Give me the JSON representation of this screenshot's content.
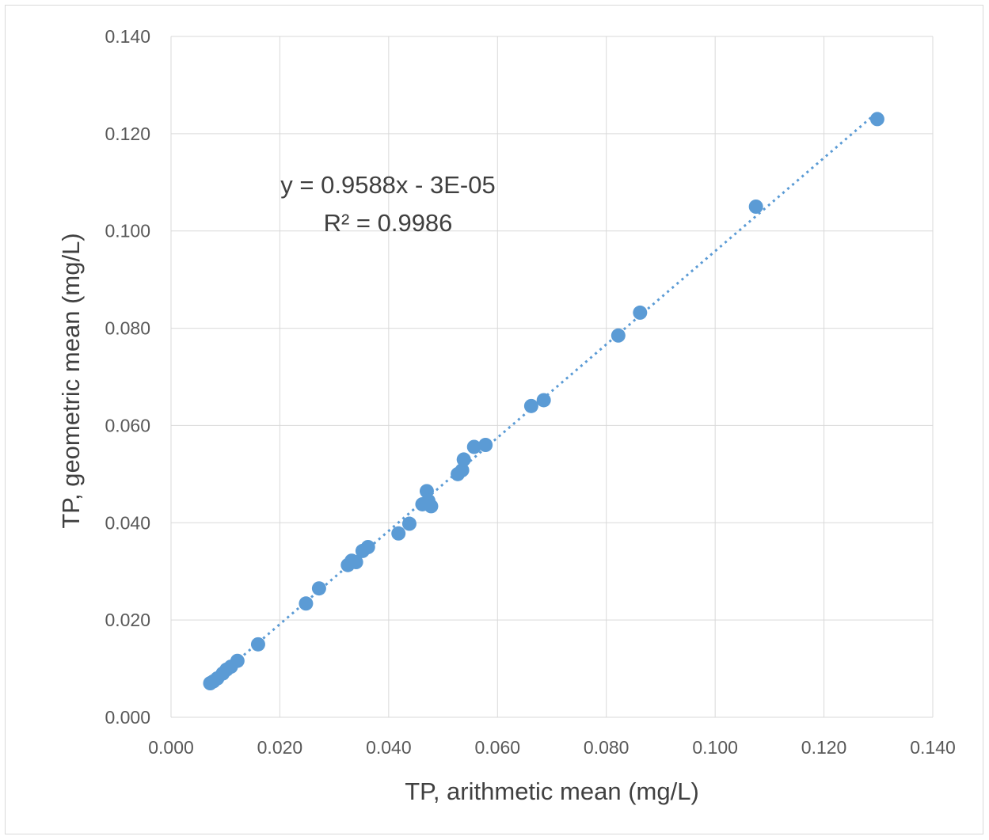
{
  "chart_data": {
    "type": "scatter",
    "title": "",
    "xlabel": "TP, arithmetic mean (mg/L)",
    "ylabel": "TP, geometric mean (mg/L)",
    "xlim": [
      0,
      0.14
    ],
    "ylim": [
      0,
      0.14
    ],
    "x_ticks": [
      "0.000",
      "0.020",
      "0.040",
      "0.060",
      "0.080",
      "0.100",
      "0.120",
      "0.140"
    ],
    "y_ticks": [
      "0.000",
      "0.020",
      "0.040",
      "0.060",
      "0.080",
      "0.100",
      "0.120",
      "0.140"
    ],
    "grid": true,
    "legend": "none",
    "series_color": "#5b9bd5",
    "points": [
      {
        "x": 0.0072,
        "y": 0.007
      },
      {
        "x": 0.0078,
        "y": 0.0074
      },
      {
        "x": 0.0085,
        "y": 0.008
      },
      {
        "x": 0.0095,
        "y": 0.009
      },
      {
        "x": 0.0102,
        "y": 0.0098
      },
      {
        "x": 0.011,
        "y": 0.0104
      },
      {
        "x": 0.0122,
        "y": 0.0116
      },
      {
        "x": 0.016,
        "y": 0.015
      },
      {
        "x": 0.0248,
        "y": 0.0234
      },
      {
        "x": 0.0272,
        "y": 0.0265
      },
      {
        "x": 0.0325,
        "y": 0.0313
      },
      {
        "x": 0.0332,
        "y": 0.0322
      },
      {
        "x": 0.034,
        "y": 0.0319
      },
      {
        "x": 0.0352,
        "y": 0.0342
      },
      {
        "x": 0.0362,
        "y": 0.035
      },
      {
        "x": 0.0418,
        "y": 0.0378
      },
      {
        "x": 0.0438,
        "y": 0.0398
      },
      {
        "x": 0.0462,
        "y": 0.0438
      },
      {
        "x": 0.047,
        "y": 0.0465
      },
      {
        "x": 0.0473,
        "y": 0.0445
      },
      {
        "x": 0.0478,
        "y": 0.0434
      },
      {
        "x": 0.0527,
        "y": 0.05
      },
      {
        "x": 0.0535,
        "y": 0.0508
      },
      {
        "x": 0.0538,
        "y": 0.053
      },
      {
        "x": 0.0557,
        "y": 0.0556
      },
      {
        "x": 0.0578,
        "y": 0.056
      },
      {
        "x": 0.0662,
        "y": 0.064
      },
      {
        "x": 0.0685,
        "y": 0.0652
      },
      {
        "x": 0.0822,
        "y": 0.0785
      },
      {
        "x": 0.0862,
        "y": 0.0832
      },
      {
        "x": 0.1075,
        "y": 0.105
      },
      {
        "x": 0.1298,
        "y": 0.123
      }
    ],
    "trendline": {
      "type": "linear",
      "slope": 0.9588,
      "intercept": -3e-05,
      "x_range": [
        0.0072,
        0.1298
      ]
    },
    "annotations": [
      "y = 0.9588x - 3E-05",
      "R² = 0.9986"
    ]
  }
}
